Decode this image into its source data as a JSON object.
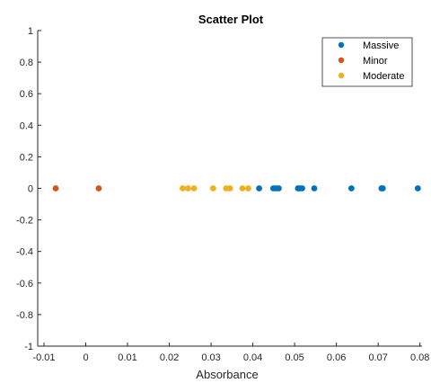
{
  "chart_data": {
    "type": "scatter",
    "title": "Scatter Plot",
    "xlabel": "Absorbance",
    "ylabel": "",
    "xlim": [
      -0.0115,
      0.0805
    ],
    "ylim": [
      -1,
      1
    ],
    "x_ticks": [
      -0.01,
      0,
      0.01,
      0.02,
      0.03,
      0.04,
      0.05,
      0.06,
      0.07,
      0.08
    ],
    "x_tick_labels": [
      "-0.01",
      "0",
      "0.01",
      "0.02",
      "0.03",
      "0.04",
      "0.05",
      "0.06",
      "0.07",
      "0.08"
    ],
    "y_ticks": [
      1,
      0.8,
      0.6,
      0.4,
      0.2,
      0,
      -0.2,
      -0.4,
      -0.6,
      -0.8,
      -1
    ],
    "y_tick_labels": [
      "1",
      "0.8",
      "0.6",
      "0.4",
      "0.2",
      "0",
      "-0.2",
      "-0.4",
      "-0.6",
      "-0.8",
      "-1"
    ],
    "grid": false,
    "legend_position": "top-right",
    "series": [
      {
        "name": "Massive",
        "color": "#0072BD",
        "x": [
          0.0415,
          0.0449,
          0.0456,
          0.0462,
          0.0508,
          0.0512,
          0.0518,
          0.0547,
          0.0636,
          0.0708,
          0.0711,
          0.0795
        ],
        "y": [
          0,
          0,
          0,
          0,
          0,
          0,
          0,
          0,
          0,
          0,
          0,
          0
        ]
      },
      {
        "name": "Minor",
        "color": "#D95319",
        "x": [
          -0.0072,
          0.0031
        ],
        "y": [
          0,
          0
        ]
      },
      {
        "name": "Moderate",
        "color": "#EDB120",
        "x": [
          0.0232,
          0.0245,
          0.0259,
          0.0305,
          0.0336,
          0.0345,
          0.0375,
          0.0389
        ],
        "y": [
          0,
          0,
          0,
          0,
          0,
          0,
          0,
          0
        ]
      }
    ]
  }
}
